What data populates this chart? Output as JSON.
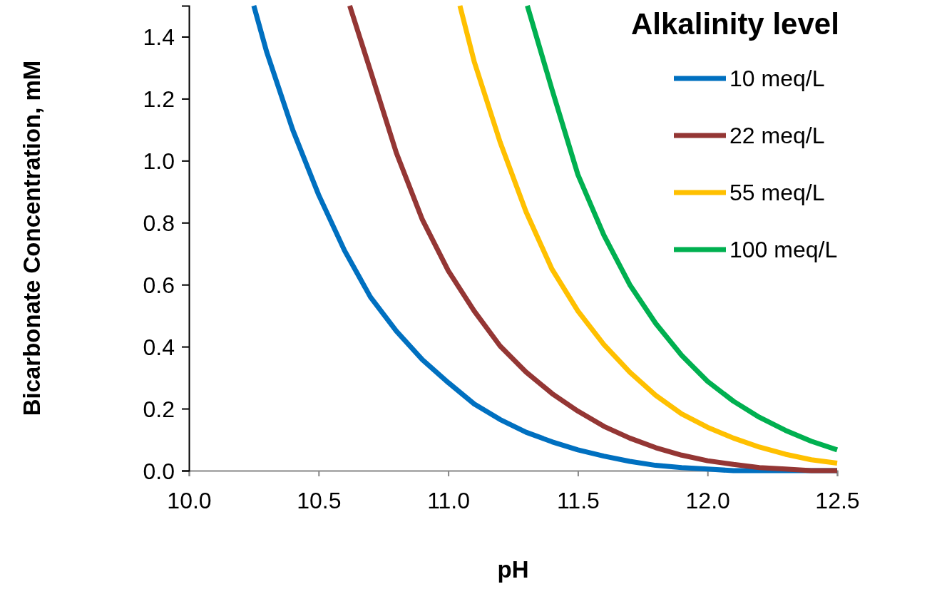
{
  "chart_data": {
    "type": "line",
    "xlabel": "pH",
    "ylabel": "Bicarbonate Concentration, mM",
    "legend_title": "Alkalinity level",
    "xlim": [
      10,
      12.5
    ],
    "ylim": [
      0,
      1.5
    ],
    "xticks": [
      {
        "value": 10,
        "label": "10.0"
      },
      {
        "value": 10.5,
        "label": "10.5"
      },
      {
        "value": 11,
        "label": "11.0"
      },
      {
        "value": 11.5,
        "label": "11.5"
      },
      {
        "value": 12,
        "label": "12.0"
      },
      {
        "value": 12.5,
        "label": "12.5"
      }
    ],
    "yticks": [
      {
        "value": 0,
        "label": "0.0"
      },
      {
        "value": 0.2,
        "label": "0.2"
      },
      {
        "value": 0.4,
        "label": "0.4"
      },
      {
        "value": 0.6,
        "label": "0.6"
      },
      {
        "value": 0.8,
        "label": "0.8"
      },
      {
        "value": 1,
        "label": "1.0"
      },
      {
        "value": 1.2,
        "label": "1.2"
      },
      {
        "value": 1.4,
        "label": "1.4"
      }
    ],
    "grid": false,
    "legend": "top right",
    "marker": "none",
    "line_style": "solid",
    "series": [
      {
        "name": "10 meq/L",
        "color": "#0070c0",
        "x": [
          10.25,
          10.3,
          10.4,
          10.5,
          10.6,
          10.7,
          10.8,
          10.9,
          11,
          11.1,
          11.2,
          11.3,
          11.4,
          11.5,
          11.6,
          11.7,
          11.8,
          11.9,
          12,
          12.1,
          12.2,
          12.3,
          12.4,
          12.5
        ],
        "values": [
          1.5,
          1.35,
          1.1,
          0.89,
          0.71,
          0.56,
          0.45,
          0.358,
          0.284,
          0.215,
          0.165,
          0.124,
          0.093,
          0.067,
          0.047,
          0.03,
          0.017,
          0.01,
          0.005,
          0,
          0,
          0,
          0,
          0
        ]
      },
      {
        "name": "22 meq/L",
        "color": "#943634",
        "x": [
          10.62,
          10.7,
          10.8,
          10.9,
          11,
          11.1,
          11.2,
          11.3,
          11.4,
          11.5,
          11.6,
          11.7,
          11.8,
          11.9,
          12,
          12.1,
          12.2,
          12.3,
          12.4,
          12.5
        ],
        "values": [
          1.5,
          1.29,
          1.025,
          0.81,
          0.645,
          0.515,
          0.402,
          0.318,
          0.249,
          0.192,
          0.143,
          0.105,
          0.074,
          0.05,
          0.032,
          0.02,
          0.01,
          0.005,
          0,
          0
        ]
      },
      {
        "name": "55 meq/L",
        "color": "#ffc000",
        "x": [
          11.045,
          11.1,
          11.2,
          11.3,
          11.4,
          11.5,
          11.6,
          11.7,
          11.8,
          11.9,
          12,
          12.1,
          12.2,
          12.3,
          12.4,
          12.5
        ],
        "values": [
          1.5,
          1.32,
          1.06,
          0.835,
          0.65,
          0.515,
          0.407,
          0.318,
          0.243,
          0.183,
          0.14,
          0.105,
          0.076,
          0.053,
          0.035,
          0.024
        ]
      },
      {
        "name": "100 meq/L",
        "color": "#00b050",
        "x": [
          11.305,
          11.4,
          11.5,
          11.6,
          11.7,
          11.8,
          11.9,
          12,
          12.1,
          12.2,
          12.3,
          12.4,
          12.5
        ],
        "values": [
          1.5,
          1.23,
          0.955,
          0.76,
          0.6,
          0.475,
          0.372,
          0.288,
          0.224,
          0.172,
          0.13,
          0.095,
          0.067
        ]
      }
    ]
  }
}
